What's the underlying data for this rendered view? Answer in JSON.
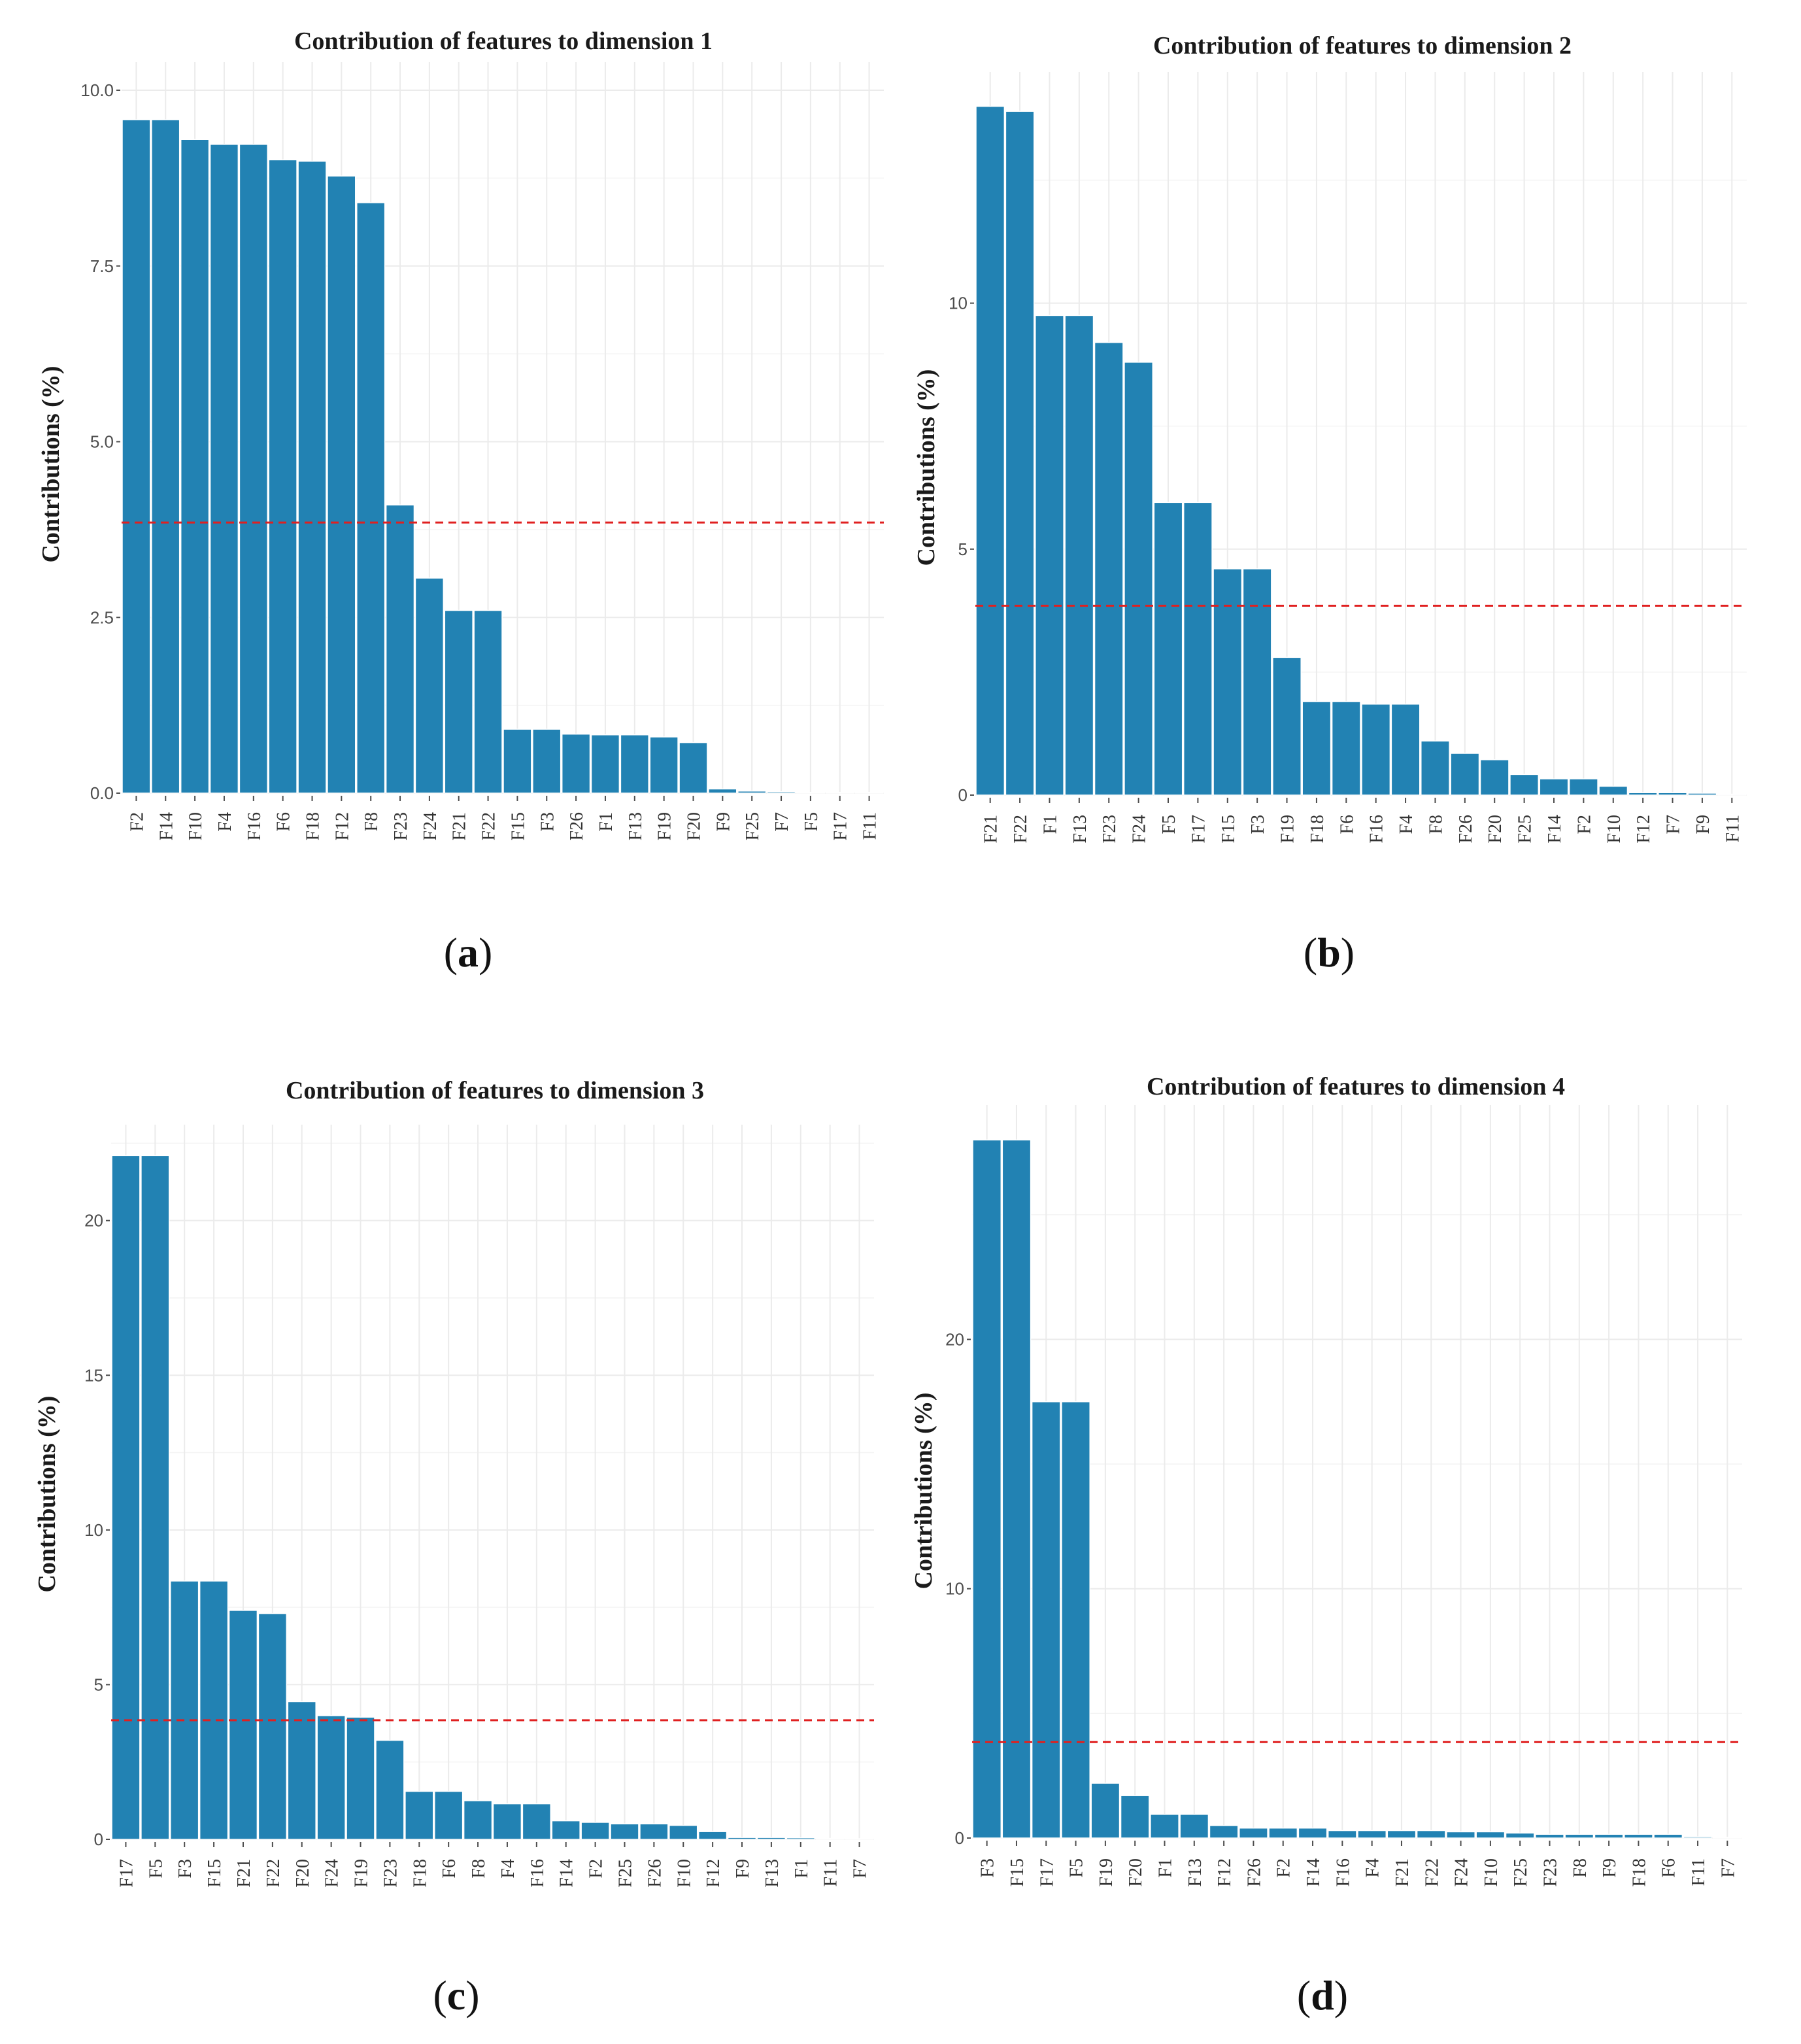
{
  "colors": {
    "bar": "#2282b3",
    "bar_edge": "#ffffff",
    "threshold": "#e02020"
  },
  "chart_data": [
    {
      "type": "bar",
      "panel": "a",
      "title": "Contribution of features to dimension 1",
      "xlabel": "",
      "ylabel": "Contributions (%)",
      "ylim": [
        0,
        10.4
      ],
      "yticks": [
        0,
        2.5,
        5,
        7.5,
        10
      ],
      "ytick_labels": [
        "0.0",
        "2.5",
        "5.0",
        "7.5",
        "10.0"
      ],
      "threshold": 3.85,
      "categories": [
        "F2",
        "F14",
        "F10",
        "F4",
        "F16",
        "F6",
        "F18",
        "F12",
        "F8",
        "F23",
        "F24",
        "F21",
        "F22",
        "F15",
        "F3",
        "F26",
        "F1",
        "F13",
        "F19",
        "F20",
        "F9",
        "F25",
        "F7",
        "F5",
        "F17",
        "F11"
      ],
      "values": [
        9.58,
        9.58,
        9.3,
        9.23,
        9.23,
        9.01,
        8.99,
        8.78,
        8.4,
        4.1,
        3.06,
        2.6,
        2.6,
        0.91,
        0.91,
        0.84,
        0.83,
        0.83,
        0.8,
        0.72,
        0.06,
        0.03,
        0.02,
        0.01,
        0.01,
        0.01
      ]
    },
    {
      "type": "bar",
      "panel": "b",
      "title": "Contribution of features to dimension 2",
      "xlabel": "",
      "ylabel": "Contributions (%)",
      "ylim": [
        0,
        14.7
      ],
      "yticks": [
        0,
        5,
        10
      ],
      "ytick_labels": [
        "0",
        "5",
        "10"
      ],
      "threshold": 3.85,
      "categories": [
        "F21",
        "F22",
        "F1",
        "F13",
        "F23",
        "F24",
        "F5",
        "F17",
        "F15",
        "F3",
        "F19",
        "F18",
        "F6",
        "F16",
        "F4",
        "F8",
        "F26",
        "F20",
        "F25",
        "F14",
        "F2",
        "F10",
        "F12",
        "F7",
        "F9",
        "F11"
      ],
      "values": [
        14.0,
        13.9,
        9.75,
        9.75,
        9.2,
        8.8,
        5.95,
        5.95,
        4.6,
        4.6,
        2.8,
        1.9,
        1.9,
        1.85,
        1.85,
        1.1,
        0.85,
        0.72,
        0.42,
        0.33,
        0.33,
        0.18,
        0.05,
        0.05,
        0.04,
        0.02
      ]
    },
    {
      "type": "bar",
      "panel": "c",
      "title": "Contribution of features to dimension 3",
      "xlabel": "",
      "ylabel": "Contributions (%)",
      "ylim": [
        0,
        23.1
      ],
      "yticks": [
        0,
        5,
        10,
        15,
        20
      ],
      "ytick_labels": [
        "0",
        "5",
        "10",
        "15",
        "20"
      ],
      "threshold": 3.85,
      "categories": [
        "F17",
        "F5",
        "F3",
        "F15",
        "F21",
        "F22",
        "F20",
        "F24",
        "F19",
        "F23",
        "F18",
        "F6",
        "F8",
        "F4",
        "F16",
        "F14",
        "F2",
        "F25",
        "F26",
        "F10",
        "F12",
        "F9",
        "F13",
        "F1",
        "F11",
        "F7"
      ],
      "values": [
        22.1,
        22.1,
        8.35,
        8.35,
        7.4,
        7.3,
        4.45,
        4.0,
        3.95,
        3.2,
        1.55,
        1.55,
        1.25,
        1.15,
        1.15,
        0.6,
        0.55,
        0.5,
        0.5,
        0.45,
        0.25,
        0.06,
        0.06,
        0.05,
        0.03,
        0.02
      ]
    },
    {
      "type": "bar",
      "panel": "d",
      "title": "Contribution of features to dimension 4",
      "xlabel": "",
      "ylabel": "Contributions (%)",
      "ylim": [
        0,
        29.4
      ],
      "yticks": [
        0,
        10,
        20
      ],
      "ytick_labels": [
        "0",
        "10",
        "20"
      ],
      "threshold": 3.85,
      "categories": [
        "F3",
        "F15",
        "F17",
        "F5",
        "F19",
        "F20",
        "F1",
        "F13",
        "F12",
        "F26",
        "F2",
        "F14",
        "F16",
        "F4",
        "F21",
        "F22",
        "F24",
        "F10",
        "F25",
        "F23",
        "F8",
        "F9",
        "F18",
        "F6",
        "F11",
        "F7"
      ],
      "values": [
        28.0,
        28.0,
        17.5,
        17.5,
        2.2,
        1.7,
        0.95,
        0.95,
        0.5,
        0.4,
        0.4,
        0.4,
        0.3,
        0.3,
        0.3,
        0.3,
        0.25,
        0.25,
        0.2,
        0.15,
        0.15,
        0.15,
        0.15,
        0.15,
        0.05,
        0.03
      ]
    }
  ],
  "captions": {
    "a": "a",
    "b": "b",
    "c": "c",
    "d": "d"
  }
}
